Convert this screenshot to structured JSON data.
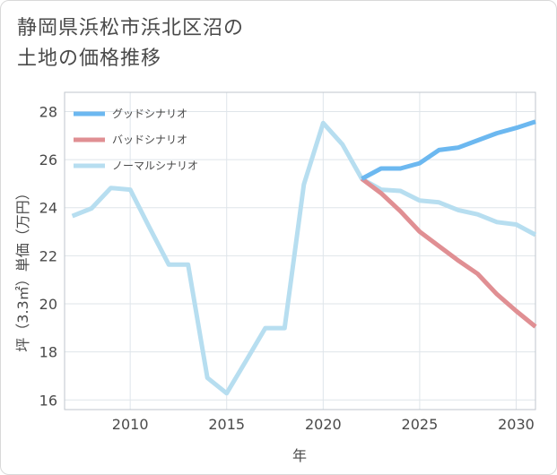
{
  "title_lines": [
    "静岡県浜松市浜北区沼の",
    "土地の価格推移"
  ],
  "chart_data": {
    "type": "line",
    "title": "静岡県浜松市浜北区沼の土地の価格推移",
    "xlabel": "年",
    "ylabel": "坪（3.3㎡）単価（万円）",
    "xlim": [
      2006.6,
      2031
    ],
    "ylim": [
      15.6,
      28.8
    ],
    "xticks": [
      2010,
      2015,
      2020,
      2025,
      2030
    ],
    "yticks": [
      16,
      18,
      20,
      22,
      24,
      26,
      28
    ],
    "grid": true,
    "legend_position": "top-left",
    "series": [
      {
        "name": "グッドシナリオ",
        "color": "#6cb8f0",
        "x": [
          2022,
          2023,
          2024,
          2025,
          2026,
          2027,
          2028,
          2029,
          2030,
          2031
        ],
        "y": [
          25.2,
          25.63,
          25.63,
          25.85,
          26.4,
          26.5,
          26.8,
          27.1,
          27.32,
          27.58
        ]
      },
      {
        "name": "バッドシナリオ",
        "color": "#e08f93",
        "x": [
          2022,
          2023,
          2024,
          2025,
          2026,
          2027,
          2028,
          2029,
          2030,
          2031
        ],
        "y": [
          25.2,
          24.6,
          23.85,
          23.0,
          22.4,
          21.8,
          21.25,
          20.4,
          19.7,
          19.05
        ]
      },
      {
        "name": "ノーマルシナリオ",
        "color": "#b7def0",
        "x": [
          2007,
          2008,
          2009,
          2010,
          2011,
          2012,
          2013,
          2014,
          2015,
          2016,
          2017,
          2018,
          2019,
          2020,
          2021,
          2022,
          2023,
          2024,
          2025,
          2026,
          2027,
          2028,
          2029,
          2030,
          2031
        ],
        "y": [
          23.65,
          23.97,
          24.82,
          24.75,
          23.17,
          21.63,
          21.63,
          16.92,
          16.28,
          17.63,
          18.99,
          18.99,
          24.97,
          27.52,
          26.63,
          25.2,
          24.75,
          24.7,
          24.3,
          24.22,
          23.9,
          23.72,
          23.4,
          23.3,
          22.87
        ]
      }
    ]
  }
}
